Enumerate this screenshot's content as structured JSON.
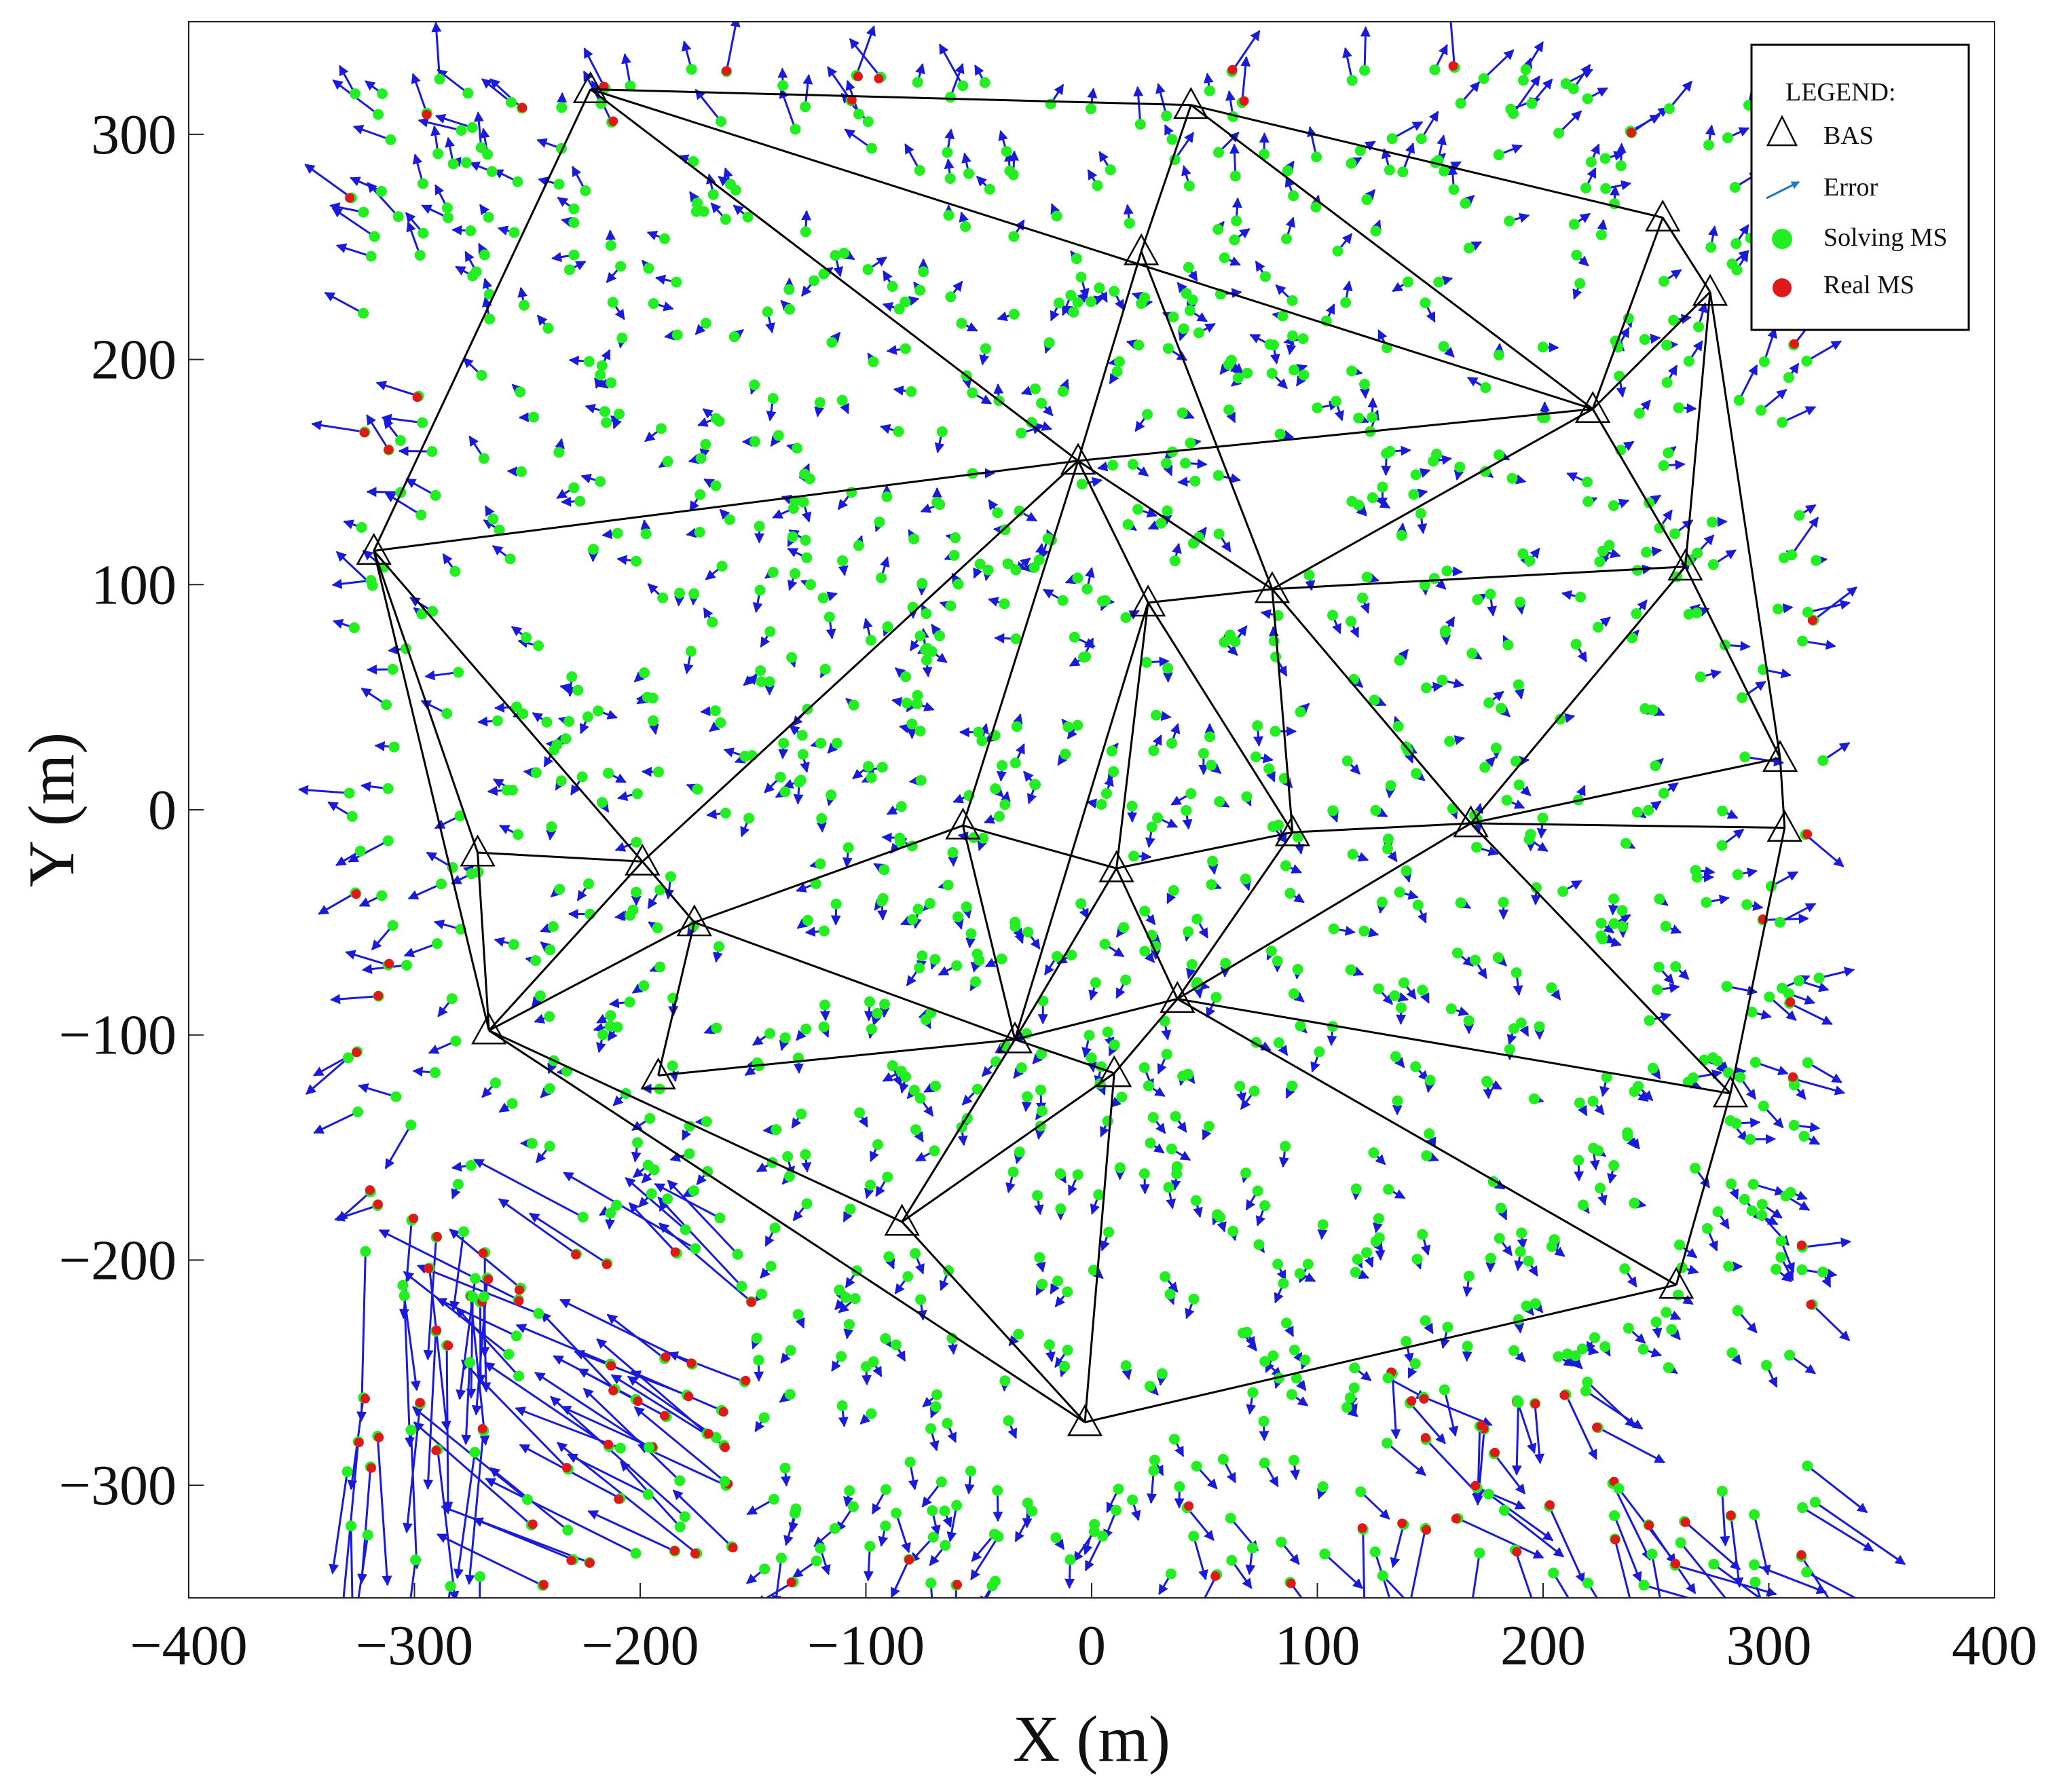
{
  "chart_data": {
    "type": "scatter",
    "xlabel": "X (m)",
    "ylabel": "Y (m)",
    "xlim": [
      -400,
      400
    ],
    "ylim": [
      -350,
      350
    ],
    "xticks": [
      -400,
      -300,
      -200,
      -100,
      0,
      100,
      200,
      300,
      400
    ],
    "yticks": [
      -300,
      -200,
      -100,
      0,
      100,
      200,
      300
    ],
    "xtick_labels": [
      "−400",
      "−300",
      "−200",
      "−100",
      "0",
      "100",
      "200",
      "300",
      "400"
    ],
    "ytick_labels": [
      "−300",
      "−200",
      "−100",
      "0",
      "100",
      "200",
      "300"
    ],
    "grid": false,
    "legend": {
      "title": "LEGEND:",
      "placement": "top-right",
      "entries": [
        "BAS",
        "Error",
        "Solving MS",
        "Real MS"
      ]
    },
    "colors": {
      "bas": "#000000",
      "edges": "#000000",
      "error": "#1a1adb",
      "legend_error": "#1f77c4",
      "solving": "#22ee22",
      "real": "#e01818"
    },
    "bas": [
      {
        "x": -222,
        "y": 320
      },
      {
        "x": 44,
        "y": 313
      },
      {
        "x": 253,
        "y": 263
      },
      {
        "x": 274,
        "y": 230
      },
      {
        "x": 22,
        "y": 248
      },
      {
        "x": 222,
        "y": 178
      },
      {
        "x": -6,
        "y": 155
      },
      {
        "x": -318,
        "y": 115
      },
      {
        "x": 263,
        "y": 108
      },
      {
        "x": 80,
        "y": 98
      },
      {
        "x": 25,
        "y": 92
      },
      {
        "x": 305,
        "y": 23
      },
      {
        "x": 307,
        "y": -8
      },
      {
        "x": 168,
        "y": -6
      },
      {
        "x": 89,
        "y": -10
      },
      {
        "x": -57,
        "y": -7
      },
      {
        "x": 11,
        "y": -26
      },
      {
        "x": -272,
        "y": -19
      },
      {
        "x": -199,
        "y": -23
      },
      {
        "x": -176,
        "y": -50
      },
      {
        "x": 38,
        "y": -84
      },
      {
        "x": -267,
        "y": -98
      },
      {
        "x": -34,
        "y": -102
      },
      {
        "x": 10,
        "y": -117
      },
      {
        "x": -192,
        "y": -118
      },
      {
        "x": 283,
        "y": -126
      },
      {
        "x": -84,
        "y": -183
      },
      {
        "x": 259,
        "y": -211
      },
      {
        "x": -3,
        "y": -272
      }
    ],
    "edges": [
      [
        0,
        1
      ],
      [
        1,
        2
      ],
      [
        2,
        3
      ],
      [
        0,
        7
      ],
      [
        0,
        6
      ],
      [
        0,
        5
      ],
      [
        1,
        4
      ],
      [
        1,
        5
      ],
      [
        2,
        5
      ],
      [
        3,
        5
      ],
      [
        3,
        8
      ],
      [
        3,
        11
      ],
      [
        4,
        6
      ],
      [
        4,
        9
      ],
      [
        5,
        6
      ],
      [
        5,
        8
      ],
      [
        5,
        9
      ],
      [
        6,
        7
      ],
      [
        6,
        9
      ],
      [
        6,
        10
      ],
      [
        6,
        15
      ],
      [
        6,
        18
      ],
      [
        7,
        17
      ],
      [
        7,
        21
      ],
      [
        7,
        18
      ],
      [
        8,
        9
      ],
      [
        8,
        11
      ],
      [
        8,
        13
      ],
      [
        9,
        10
      ],
      [
        9,
        13
      ],
      [
        9,
        14
      ],
      [
        10,
        14
      ],
      [
        10,
        16
      ],
      [
        10,
        22
      ],
      [
        11,
        12
      ],
      [
        11,
        13
      ],
      [
        12,
        13
      ],
      [
        13,
        14
      ],
      [
        13,
        20
      ],
      [
        13,
        25
      ],
      [
        14,
        16
      ],
      [
        14,
        20
      ],
      [
        15,
        16
      ],
      [
        15,
        19
      ],
      [
        15,
        22
      ],
      [
        16,
        20
      ],
      [
        16,
        22
      ],
      [
        17,
        18
      ],
      [
        17,
        21
      ],
      [
        18,
        21
      ],
      [
        18,
        19
      ],
      [
        19,
        21
      ],
      [
        19,
        24
      ],
      [
        19,
        22
      ],
      [
        20,
        22
      ],
      [
        20,
        23
      ],
      [
        20,
        25
      ],
      [
        20,
        27
      ],
      [
        21,
        26
      ],
      [
        21,
        28
      ],
      [
        22,
        24
      ],
      [
        22,
        26
      ],
      [
        22,
        23
      ],
      [
        23,
        26
      ],
      [
        23,
        28
      ],
      [
        25,
        27
      ],
      [
        27,
        28
      ],
      [
        12,
        25
      ],
      [
        26,
        28
      ]
    ]
  }
}
